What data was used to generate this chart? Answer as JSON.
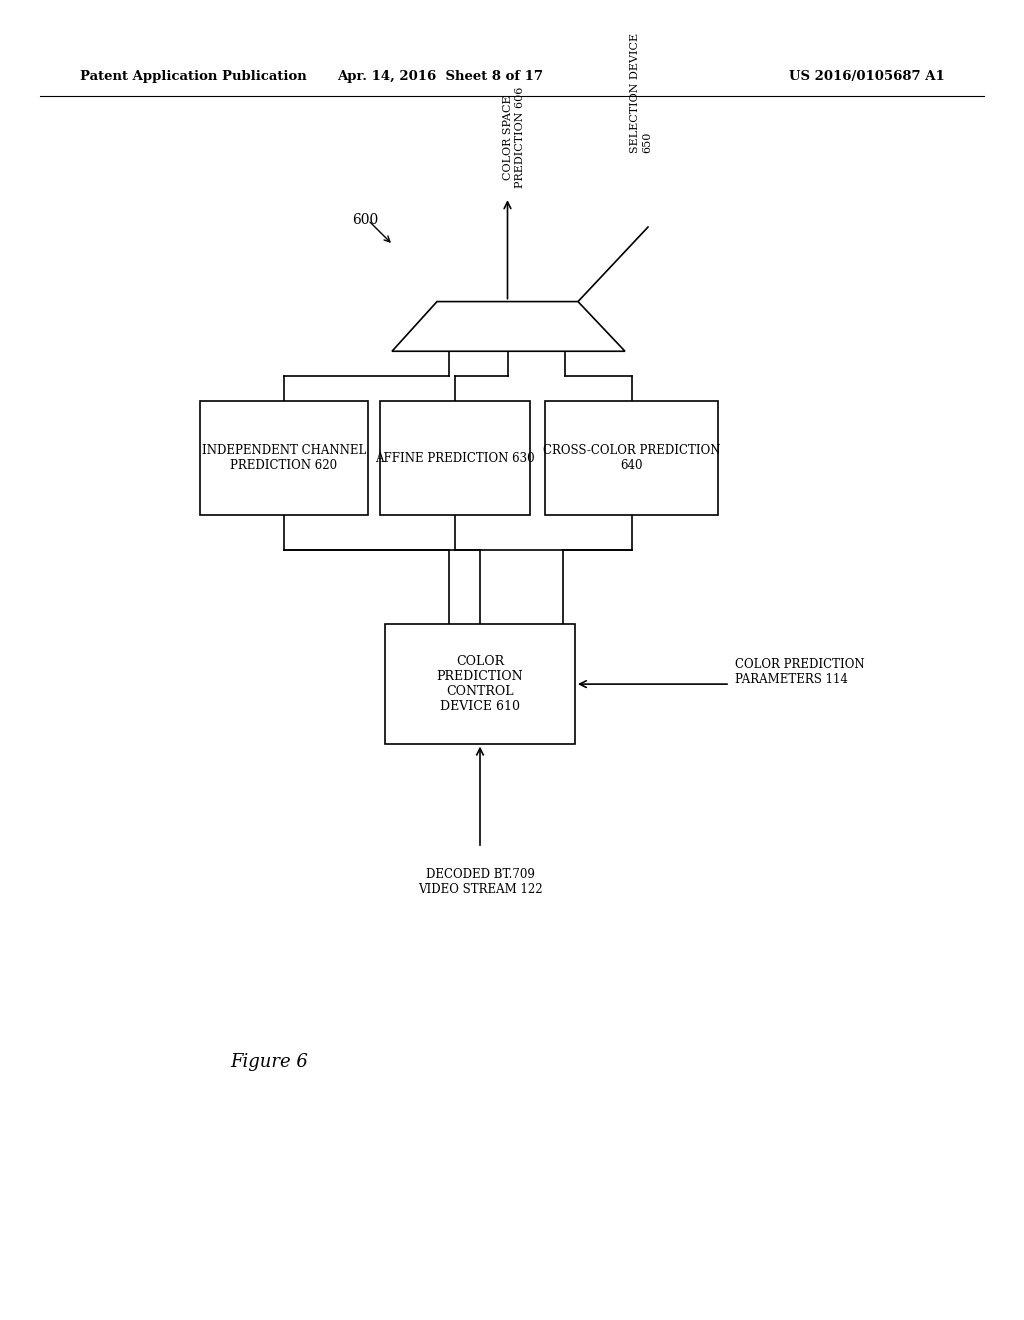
{
  "bg_color": "#ffffff",
  "header_left": "Patent Application Publication",
  "header_center": "Apr. 14, 2016  Sheet 8 of 17",
  "header_right": "US 2016/0105687 A1",
  "figure_label": "Figure 6",
  "diagram_label": "600",
  "lw": 1.2
}
